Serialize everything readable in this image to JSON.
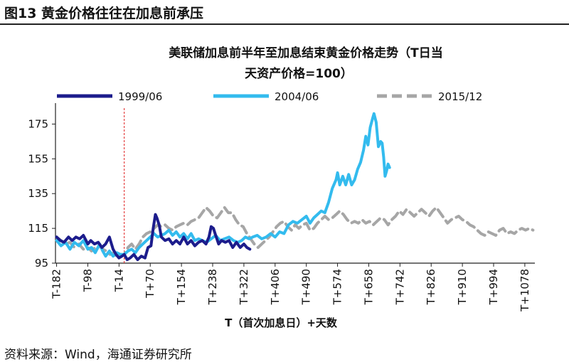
{
  "figure": {
    "title": "图13 黄金价格往往在加息前承压",
    "source": "资料来源：Wind，海通证券研究所"
  },
  "chart_data": {
    "type": "line",
    "title_line1": "美联储加息前半年至加息结束黄金价格走势（T日当",
    "title_line2": "天资产价格=100）",
    "xlabel": "T（首次加息日）+天数",
    "ylabel": "",
    "ylim": [
      95,
      185
    ],
    "xlim": [
      -185,
      1105
    ],
    "y_ticks": [
      95,
      115,
      135,
      155,
      175
    ],
    "x_tick_labels": [
      "T-182",
      "T-98",
      "T-14",
      "T+70",
      "T+154",
      "T+238",
      "T+322",
      "T+406",
      "T+490",
      "T+574",
      "T+658",
      "T+742",
      "T+826",
      "T+910",
      "T+994",
      "T+1078"
    ],
    "x_tick_values": [
      -182,
      -98,
      -14,
      70,
      154,
      238,
      322,
      406,
      490,
      574,
      658,
      742,
      826,
      910,
      994,
      1078
    ],
    "vline_x": 0,
    "legend_position": "top",
    "grid": false,
    "series": [
      {
        "name": "1999/06",
        "color": "#1c1c8c",
        "dash": "solid",
        "points": [
          [
            -182,
            110
          ],
          [
            -172,
            108
          ],
          [
            -162,
            107
          ],
          [
            -150,
            110
          ],
          [
            -140,
            108
          ],
          [
            -130,
            110
          ],
          [
            -120,
            109
          ],
          [
            -110,
            111
          ],
          [
            -98,
            106
          ],
          [
            -90,
            108
          ],
          [
            -80,
            106
          ],
          [
            -70,
            107
          ],
          [
            -60,
            104
          ],
          [
            -50,
            106
          ],
          [
            -40,
            110
          ],
          [
            -30,
            103
          ],
          [
            -22,
            100
          ],
          [
            -14,
            98
          ],
          [
            -6,
            99
          ],
          [
            0,
            100
          ],
          [
            8,
            97
          ],
          [
            16,
            98
          ],
          [
            26,
            100
          ],
          [
            36,
            97
          ],
          [
            46,
            99
          ],
          [
            56,
            98
          ],
          [
            64,
            104
          ],
          [
            72,
            105
          ],
          [
            78,
            115
          ],
          [
            84,
            123
          ],
          [
            88,
            121
          ],
          [
            94,
            117
          ],
          [
            100,
            110
          ],
          [
            110,
            108
          ],
          [
            120,
            109
          ],
          [
            130,
            106
          ],
          [
            140,
            108
          ],
          [
            150,
            106
          ],
          [
            160,
            110
          ],
          [
            170,
            106
          ],
          [
            180,
            108
          ],
          [
            190,
            105
          ],
          [
            200,
            107
          ],
          [
            210,
            108
          ],
          [
            220,
            106
          ],
          [
            228,
            110
          ],
          [
            234,
            116
          ],
          [
            240,
            115
          ],
          [
            246,
            111
          ],
          [
            254,
            106
          ],
          [
            262,
            108
          ],
          [
            272,
            107
          ],
          [
            282,
            108
          ],
          [
            292,
            104
          ],
          [
            302,
            107
          ],
          [
            312,
            104
          ],
          [
            322,
            106
          ],
          [
            330,
            104
          ],
          [
            338,
            103
          ]
        ]
      },
      {
        "name": "2004/06",
        "color": "#33bbee",
        "dash": "solid",
        "points": [
          [
            -182,
            108
          ],
          [
            -170,
            105
          ],
          [
            -158,
            107
          ],
          [
            -146,
            103
          ],
          [
            -134,
            107
          ],
          [
            -122,
            105
          ],
          [
            -110,
            108
          ],
          [
            -98,
            103
          ],
          [
            -88,
            104
          ],
          [
            -78,
            101
          ],
          [
            -66,
            106
          ],
          [
            -58,
            102
          ],
          [
            -50,
            99
          ],
          [
            -40,
            102
          ],
          [
            -30,
            99
          ],
          [
            -20,
            101
          ],
          [
            -10,
            100
          ],
          [
            0,
            100
          ],
          [
            10,
            102
          ],
          [
            20,
            103
          ],
          [
            30,
            101
          ],
          [
            40,
            104
          ],
          [
            50,
            106
          ],
          [
            60,
            108
          ],
          [
            70,
            110
          ],
          [
            80,
            112
          ],
          [
            90,
            110
          ],
          [
            100,
            111
          ],
          [
            110,
            112
          ],
          [
            120,
            114
          ],
          [
            130,
            111
          ],
          [
            140,
            113
          ],
          [
            150,
            110
          ],
          [
            160,
            112
          ],
          [
            170,
            109
          ],
          [
            180,
            112
          ],
          [
            190,
            108
          ],
          [
            200,
            109
          ],
          [
            210,
            108
          ],
          [
            222,
            107
          ],
          [
            234,
            109
          ],
          [
            246,
            111
          ],
          [
            258,
            108
          ],
          [
            270,
            109
          ],
          [
            282,
            110
          ],
          [
            294,
            108
          ],
          [
            306,
            107
          ],
          [
            316,
            108
          ],
          [
            326,
            110
          ],
          [
            336,
            109
          ],
          [
            346,
            110
          ],
          [
            358,
            111
          ],
          [
            370,
            109
          ],
          [
            382,
            110
          ],
          [
            394,
            112
          ],
          [
            406,
            110
          ],
          [
            418,
            113
          ],
          [
            430,
            112
          ],
          [
            442,
            117
          ],
          [
            454,
            119
          ],
          [
            466,
            118
          ],
          [
            478,
            120
          ],
          [
            490,
            122
          ],
          [
            500,
            118
          ],
          [
            510,
            121
          ],
          [
            520,
            123
          ],
          [
            530,
            125
          ],
          [
            540,
            124
          ],
          [
            550,
            130
          ],
          [
            560,
            138
          ],
          [
            570,
            143
          ],
          [
            574,
            147
          ],
          [
            580,
            140
          ],
          [
            588,
            145
          ],
          [
            596,
            140
          ],
          [
            604,
            146
          ],
          [
            612,
            140
          ],
          [
            620,
            143
          ],
          [
            628,
            149
          ],
          [
            636,
            153
          ],
          [
            644,
            160
          ],
          [
            650,
            168
          ],
          [
            656,
            163
          ],
          [
            662,
            173
          ],
          [
            668,
            178
          ],
          [
            672,
            181
          ],
          [
            678,
            176
          ],
          [
            684,
            162
          ],
          [
            690,
            165
          ],
          [
            694,
            164
          ],
          [
            698,
            156
          ],
          [
            702,
            145
          ],
          [
            706,
            148
          ],
          [
            710,
            152
          ],
          [
            714,
            150
          ]
        ]
      },
      {
        "name": "2015/12",
        "color": "#a6a6a6",
        "dash": "dashed",
        "points": [
          [
            -182,
            110
          ],
          [
            -170,
            108
          ],
          [
            -158,
            106
          ],
          [
            -146,
            107
          ],
          [
            -134,
            104
          ],
          [
            -122,
            106
          ],
          [
            -110,
            103
          ],
          [
            -98,
            104
          ],
          [
            -88,
            102
          ],
          [
            -78,
            104
          ],
          [
            -68,
            105
          ],
          [
            -58,
            103
          ],
          [
            -48,
            102
          ],
          [
            -38,
            100
          ],
          [
            -28,
            101
          ],
          [
            -18,
            98
          ],
          [
            -8,
            100
          ],
          [
            0,
            100
          ],
          [
            10,
            104
          ],
          [
            20,
            106
          ],
          [
            30,
            103
          ],
          [
            40,
            106
          ],
          [
            50,
            110
          ],
          [
            60,
            112
          ],
          [
            70,
            113
          ],
          [
            80,
            115
          ],
          [
            90,
            117
          ],
          [
            100,
            116
          ],
          [
            110,
            117
          ],
          [
            120,
            115
          ],
          [
            130,
            114
          ],
          [
            140,
            116
          ],
          [
            150,
            117
          ],
          [
            160,
            118
          ],
          [
            170,
            117
          ],
          [
            180,
            119
          ],
          [
            190,
            120
          ],
          [
            200,
            121
          ],
          [
            210,
            124
          ],
          [
            220,
            127
          ],
          [
            230,
            125
          ],
          [
            240,
            122
          ],
          [
            250,
            121
          ],
          [
            260,
            124
          ],
          [
            270,
            127
          ],
          [
            280,
            124
          ],
          [
            290,
            124
          ],
          [
            300,
            120
          ],
          [
            310,
            117
          ],
          [
            320,
            116
          ],
          [
            330,
            112
          ],
          [
            340,
            109
          ],
          [
            350,
            106
          ],
          [
            360,
            104
          ],
          [
            370,
            106
          ],
          [
            380,
            108
          ],
          [
            390,
            110
          ],
          [
            400,
            113
          ],
          [
            410,
            116
          ],
          [
            420,
            118
          ],
          [
            430,
            119
          ],
          [
            440,
            116
          ],
          [
            450,
            114
          ],
          [
            460,
            117
          ],
          [
            470,
            115
          ],
          [
            480,
            117
          ],
          [
            490,
            118
          ],
          [
            500,
            114
          ],
          [
            510,
            115
          ],
          [
            520,
            118
          ],
          [
            530,
            120
          ],
          [
            540,
            122
          ],
          [
            550,
            120
          ],
          [
            560,
            121
          ],
          [
            570,
            123
          ],
          [
            580,
            125
          ],
          [
            590,
            123
          ],
          [
            600,
            120
          ],
          [
            610,
            118
          ],
          [
            620,
            119
          ],
          [
            630,
            118
          ],
          [
            640,
            120
          ],
          [
            650,
            118
          ],
          [
            660,
            119
          ],
          [
            670,
            117
          ],
          [
            680,
            119
          ],
          [
            690,
            121
          ],
          [
            700,
            120
          ],
          [
            710,
            117
          ],
          [
            720,
            120
          ],
          [
            730,
            122
          ],
          [
            740,
            125
          ],
          [
            750,
            123
          ],
          [
            760,
            126
          ],
          [
            770,
            124
          ],
          [
            780,
            122
          ],
          [
            790,
            124
          ],
          [
            800,
            126
          ],
          [
            810,
            124
          ],
          [
            820,
            122
          ],
          [
            830,
            125
          ],
          [
            840,
            127
          ],
          [
            850,
            124
          ],
          [
            860,
            121
          ],
          [
            870,
            118
          ],
          [
            880,
            120
          ],
          [
            890,
            121
          ],
          [
            900,
            122
          ],
          [
            910,
            120
          ],
          [
            920,
            119
          ],
          [
            930,
            117
          ],
          [
            940,
            116
          ],
          [
            950,
            114
          ],
          [
            960,
            112
          ],
          [
            970,
            111
          ],
          [
            980,
            113
          ],
          [
            990,
            112
          ],
          [
            1000,
            111
          ],
          [
            1010,
            114
          ],
          [
            1020,
            115
          ],
          [
            1030,
            112
          ],
          [
            1040,
            113
          ],
          [
            1050,
            112
          ],
          [
            1060,
            114
          ],
          [
            1070,
            115
          ],
          [
            1080,
            114
          ],
          [
            1090,
            115
          ],
          [
            1100,
            114
          ]
        ]
      }
    ]
  }
}
